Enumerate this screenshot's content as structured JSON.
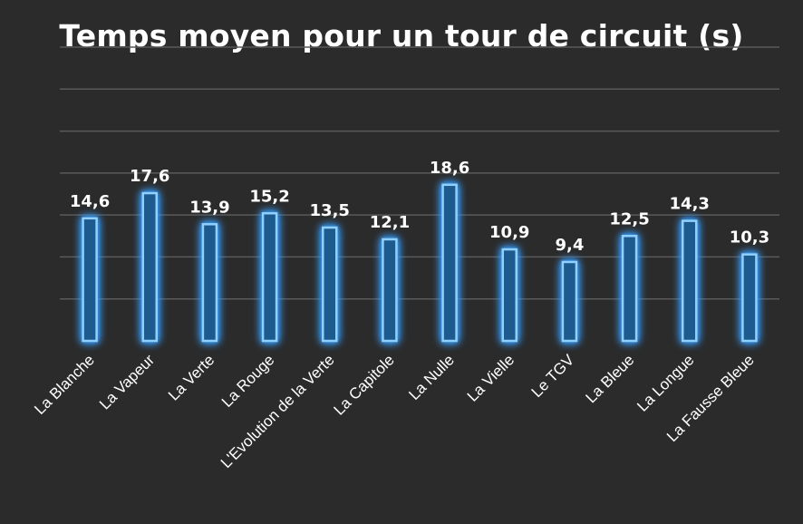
{
  "chart_data": {
    "type": "bar",
    "title": "Temps moyen pour un tour de circuit (s)",
    "xlabel": "",
    "ylabel": "",
    "categories": [
      "La Blanche",
      "La Vapeur",
      "La Verte",
      "La Rouge",
      "L'Evolution de la Verte",
      "La Capitole",
      "La Nulle",
      "La Vielle",
      "Le TGV",
      "La Bleue",
      "La Longue",
      "La Fausse Bleue"
    ],
    "values": [
      14.6,
      17.6,
      13.9,
      15.2,
      13.5,
      12.1,
      18.6,
      10.9,
      9.4,
      12.5,
      14.3,
      10.3
    ],
    "value_labels": [
      "14,6",
      "17,6",
      "13,9",
      "15,2",
      "13,5",
      "12,1",
      "18,6",
      "10,9",
      "9,4",
      "12,5",
      "14,3",
      "10,3"
    ],
    "ylim": [
      0,
      35
    ],
    "grid": true,
    "legend": "none",
    "colors": {
      "background": "#2b2b2b",
      "bar_fill": "#1d5a8e",
      "bar_outline": "#8fd0ff",
      "glow": "#1f8fff",
      "text": "#ffffff",
      "grid": "#5a5a5a"
    }
  }
}
